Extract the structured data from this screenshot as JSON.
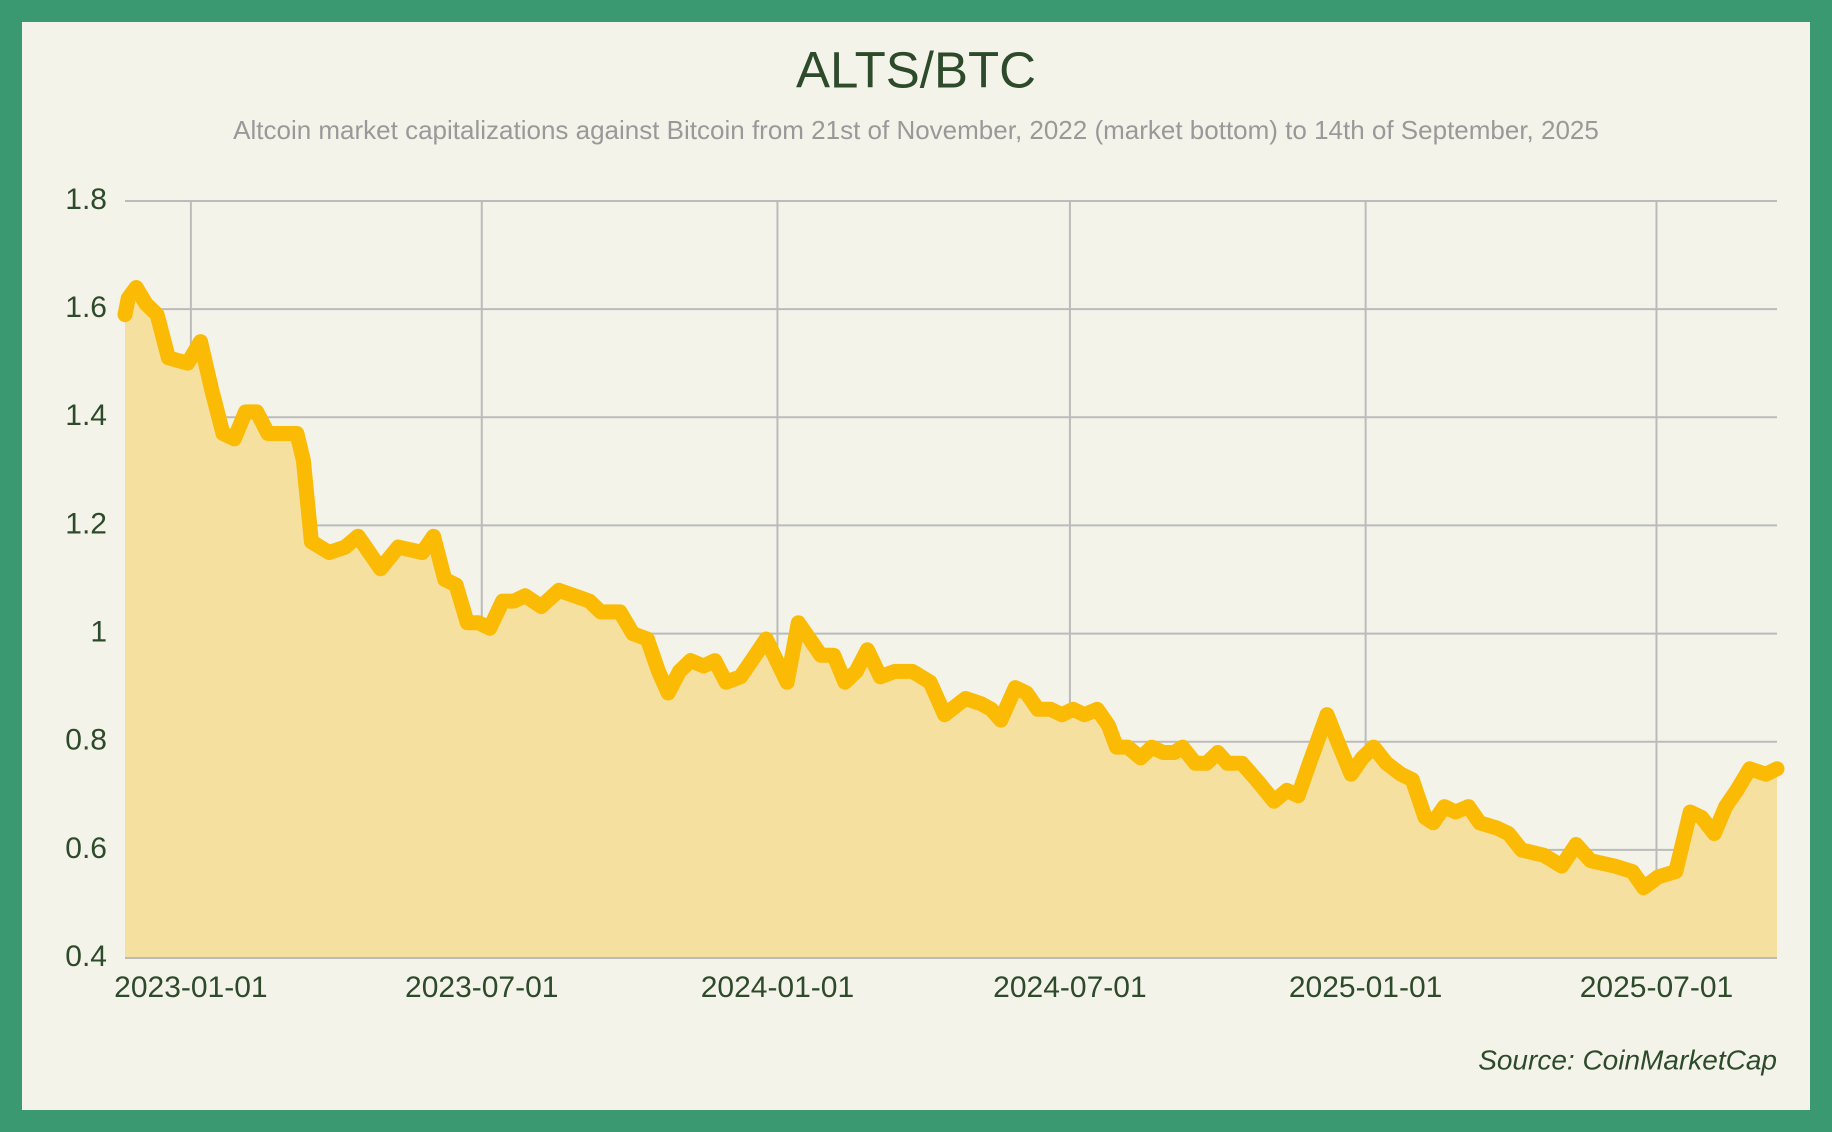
{
  "chart_data": {
    "type": "area",
    "title": "ALTS/BTC",
    "subtitle": "Altcoin market capitalizations against Bitcoin from 21st of November, 2022 (market bottom) to 14th of September, 2025",
    "source": "Source: CoinMarketCap",
    "color": "#fbbb05",
    "fill_color": "#f5e0a0",
    "grid": true,
    "xlim": [
      "2022-11-21",
      "2025-09-14"
    ],
    "xticks": [
      "2023-01-01",
      "2023-07-01",
      "2024-01-01",
      "2024-07-01",
      "2025-01-01",
      "2025-07-01"
    ],
    "ylim": [
      0.4,
      1.8
    ],
    "yticks": [
      0.4,
      0.6,
      0.8,
      1,
      1.2,
      1.4,
      1.6,
      1.8
    ],
    "x": [
      "2022-11-21",
      "2022-11-23",
      "2022-11-28",
      "2022-12-04",
      "2022-12-11",
      "2022-12-18",
      "2022-12-30",
      "2023-01-07",
      "2023-01-14",
      "2023-01-21",
      "2023-01-28",
      "2023-02-04",
      "2023-02-11",
      "2023-02-18",
      "2023-02-27",
      "2023-03-08",
      "2023-03-12",
      "2023-03-17",
      "2023-03-28",
      "2023-04-07",
      "2023-04-15",
      "2023-04-29",
      "2023-05-10",
      "2023-05-25",
      "2023-06-01",
      "2023-06-08",
      "2023-06-15",
      "2023-06-22",
      "2023-06-29",
      "2023-07-06",
      "2023-07-14",
      "2023-07-21",
      "2023-07-28",
      "2023-08-07",
      "2023-08-18",
      "2023-09-06",
      "2023-09-13",
      "2023-09-25",
      "2023-10-03",
      "2023-10-12",
      "2023-10-19",
      "2023-10-25",
      "2023-11-01",
      "2023-11-08",
      "2023-11-16",
      "2023-11-23",
      "2023-11-30",
      "2023-12-09",
      "2023-12-16",
      "2023-12-25",
      "2024-01-07",
      "2024-01-14",
      "2024-01-21",
      "2024-01-28",
      "2024-02-05",
      "2024-02-12",
      "2024-02-19",
      "2024-02-26",
      "2024-03-05",
      "2024-03-14",
      "2024-03-25",
      "2024-04-05",
      "2024-04-14",
      "2024-04-27",
      "2024-05-07",
      "2024-05-13",
      "2024-05-19",
      "2024-05-28",
      "2024-06-04",
      "2024-06-11",
      "2024-06-19",
      "2024-06-26",
      "2024-07-03",
      "2024-07-10",
      "2024-07-18",
      "2024-07-25",
      "2024-07-30",
      "2024-08-06",
      "2024-08-14",
      "2024-08-21",
      "2024-08-28",
      "2024-09-04",
      "2024-09-09",
      "2024-09-17",
      "2024-09-24",
      "2024-10-01",
      "2024-10-07",
      "2024-10-16",
      "2024-10-25",
      "2024-11-05",
      "2024-11-13",
      "2024-11-20",
      "2024-11-27",
      "2024-12-08",
      "2024-12-16",
      "2024-12-23",
      "2024-12-30",
      "2025-01-06",
      "2025-01-14",
      "2025-01-23",
      "2025-01-30",
      "2025-02-07",
      "2025-02-12",
      "2025-02-19",
      "2025-02-26",
      "2025-03-06",
      "2025-03-13",
      "2025-03-24",
      "2025-03-31",
      "2025-04-08",
      "2025-04-22",
      "2025-05-03",
      "2025-05-12",
      "2025-05-21",
      "2025-06-05",
      "2025-06-16",
      "2025-06-23",
      "2025-07-02",
      "2025-07-13",
      "2025-07-22",
      "2025-07-29",
      "2025-08-06",
      "2025-08-13",
      "2025-08-20",
      "2025-08-28",
      "2025-09-07",
      "2025-09-14"
    ],
    "values": [
      1.59,
      1.62,
      1.64,
      1.61,
      1.59,
      1.51,
      1.5,
      1.54,
      1.45,
      1.37,
      1.36,
      1.41,
      1.41,
      1.37,
      1.37,
      1.37,
      1.32,
      1.17,
      1.15,
      1.16,
      1.18,
      1.12,
      1.16,
      1.15,
      1.18,
      1.1,
      1.09,
      1.02,
      1.02,
      1.01,
      1.06,
      1.06,
      1.07,
      1.05,
      1.08,
      1.06,
      1.04,
      1.04,
      1,
      0.99,
      0.93,
      0.89,
      0.93,
      0.95,
      0.94,
      0.95,
      0.91,
      0.92,
      0.95,
      0.99,
      0.91,
      1.02,
      0.99,
      0.96,
      0.96,
      0.91,
      0.93,
      0.97,
      0.92,
      0.93,
      0.93,
      0.91,
      0.85,
      0.88,
      0.87,
      0.86,
      0.84,
      0.9,
      0.89,
      0.86,
      0.86,
      0.85,
      0.86,
      0.85,
      0.86,
      0.83,
      0.79,
      0.79,
      0.77,
      0.79,
      0.78,
      0.78,
      0.79,
      0.76,
      0.76,
      0.78,
      0.76,
      0.76,
      0.73,
      0.69,
      0.71,
      0.7,
      0.76,
      0.85,
      0.79,
      0.74,
      0.77,
      0.79,
      0.76,
      0.74,
      0.73,
      0.66,
      0.65,
      0.68,
      0.67,
      0.68,
      0.65,
      0.64,
      0.63,
      0.6,
      0.59,
      0.57,
      0.61,
      0.58,
      0.57,
      0.56,
      0.53,
      0.55,
      0.56,
      0.67,
      0.66,
      0.63,
      0.68,
      0.71,
      0.75,
      0.74,
      0.75
    ]
  }
}
